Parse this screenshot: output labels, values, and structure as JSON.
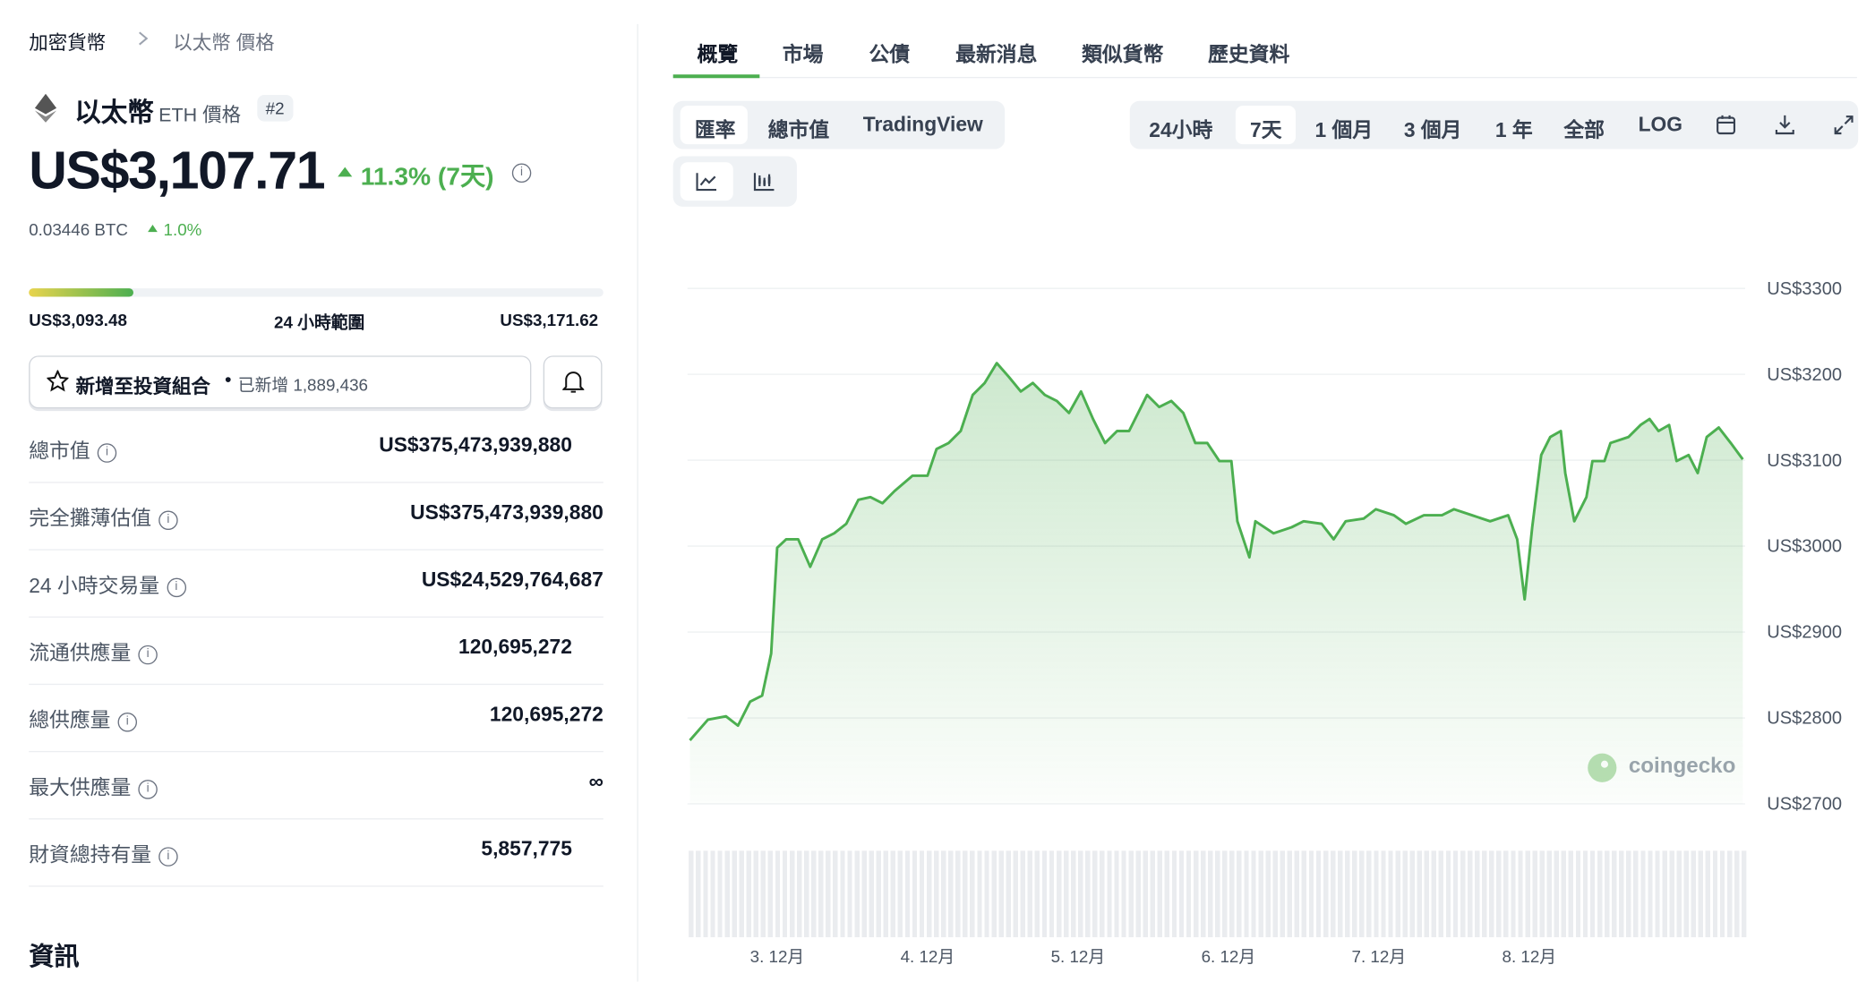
{
  "breadcrumb": [
    "加密貨幣",
    "以太幣 價格"
  ],
  "coin": {
    "name": "以太幣",
    "symbol": "ETH 價格",
    "rank": "#2",
    "price": "US$3,107.71",
    "change": "11.3% (7天)",
    "btc_price": "0.03446 BTC",
    "btc_change": "1.0%"
  },
  "range": {
    "low": "US$3,093.48",
    "label": "24 小時範圍",
    "high": "US$3,171.62",
    "low_value": 3093.48,
    "current_value": 3107.71,
    "high_value": 3171.62
  },
  "portfolio": {
    "button": "新增至投資組合",
    "separator": "•",
    "count": "已新增 1,889,436"
  },
  "stats": [
    {
      "label": "總市值",
      "value": "US$375,473,939,880"
    },
    {
      "label": "完全攤薄估值",
      "value": "US$375,473,939,880"
    },
    {
      "label": "24 小時交易量",
      "value": "US$24,529,764,687"
    },
    {
      "label": "流通供應量",
      "value": "120,695,272"
    },
    {
      "label": "總供應量",
      "value": "120,695,272"
    },
    {
      "label": "最大供應量",
      "value": "∞"
    },
    {
      "label": "財資總持有量",
      "value": "5,857,775"
    }
  ],
  "info_heading": "資訊",
  "tabs": [
    "概覽",
    "市場",
    "公債",
    "最新消息",
    "類似貨幣",
    "歷史資料"
  ],
  "modes": [
    "匯率",
    "總市值",
    "TradingView"
  ],
  "ranges": [
    "24小時",
    "7天",
    "1 個月",
    "3 個月",
    "1 年",
    "全部",
    "LOG"
  ],
  "watermark": "coingecko",
  "chart_data": {
    "type": "line",
    "x": [
      2.42,
      2.54,
      2.66,
      2.74,
      2.82,
      2.9,
      2.96,
      3.0,
      3.06,
      3.14,
      3.22,
      3.3,
      3.38,
      3.46,
      3.54,
      3.62,
      3.7,
      3.78,
      3.9,
      4.0,
      4.06,
      4.14,
      4.22,
      4.3,
      4.38,
      4.46,
      4.54,
      4.62,
      4.7,
      4.78,
      4.86,
      4.94,
      5.02,
      5.1,
      5.18,
      5.26,
      5.34,
      5.46,
      5.54,
      5.62,
      5.7,
      5.78,
      5.86,
      5.94,
      6.02,
      6.06,
      6.14,
      6.18,
      6.3,
      6.42,
      6.5,
      6.62,
      6.7,
      6.78,
      6.9,
      6.98,
      7.1,
      7.18,
      7.3,
      7.42,
      7.5,
      7.62,
      7.74,
      7.86,
      7.92,
      7.97,
      8.02,
      8.08,
      8.14,
      8.21,
      8.24,
      8.3,
      8.38,
      8.42,
      8.5,
      8.54,
      8.66,
      8.74,
      8.8,
      8.86,
      8.93,
      8.98,
      9.06,
      9.12,
      9.18,
      9.26,
      9.34,
      9.42
    ],
    "series": [
      {
        "name": "ETH",
        "color": "#4caf50",
        "values": [
          2774,
          2798,
          2802,
          2791,
          2819,
          2826,
          2875,
          2998,
          3008,
          3008,
          2976,
          3008,
          3015,
          3026,
          3054,
          3057,
          3050,
          3064,
          3082,
          3082,
          3113,
          3120,
          3134,
          3176,
          3190,
          3213,
          3197,
          3180,
          3190,
          3176,
          3169,
          3155,
          3180,
          3148,
          3120,
          3134,
          3134,
          3176,
          3162,
          3169,
          3155,
          3120,
          3120,
          3099,
          3099,
          3029,
          2987,
          3029,
          3015,
          3022,
          3029,
          3026,
          3008,
          3029,
          3032,
          3043,
          3036,
          3026,
          3036,
          3036,
          3043,
          3036,
          3029,
          3036,
          3008,
          2938,
          3022,
          3106,
          3127,
          3134,
          3085,
          3029,
          3057,
          3099,
          3099,
          3120,
          3127,
          3141,
          3148,
          3134,
          3141,
          3099,
          3106,
          3085,
          3127,
          3138,
          3120,
          3101
        ]
      }
    ],
    "xlim": [
      2.42,
      9.42
    ],
    "xticks": [
      {
        "value": 3,
        "label": "3. 12月"
      },
      {
        "value": 4,
        "label": "4. 12月"
      },
      {
        "value": 5,
        "label": "5. 12月"
      },
      {
        "value": 6,
        "label": "6. 12月"
      },
      {
        "value": 7,
        "label": "7. 12月"
      },
      {
        "value": 8,
        "label": "8. 12月"
      }
    ],
    "ylim": [
      2700,
      3300
    ],
    "yticks": [
      {
        "value": 2700,
        "label": "US$2700"
      },
      {
        "value": 2800,
        "label": "US$2800"
      },
      {
        "value": 2900,
        "label": "US$2900"
      },
      {
        "value": 3000,
        "label": "US$3000"
      },
      {
        "value": 3100,
        "label": "US$3100"
      },
      {
        "value": 3200,
        "label": "US$3200"
      },
      {
        "value": 3300,
        "label": "US$3300"
      }
    ],
    "grid": true
  }
}
